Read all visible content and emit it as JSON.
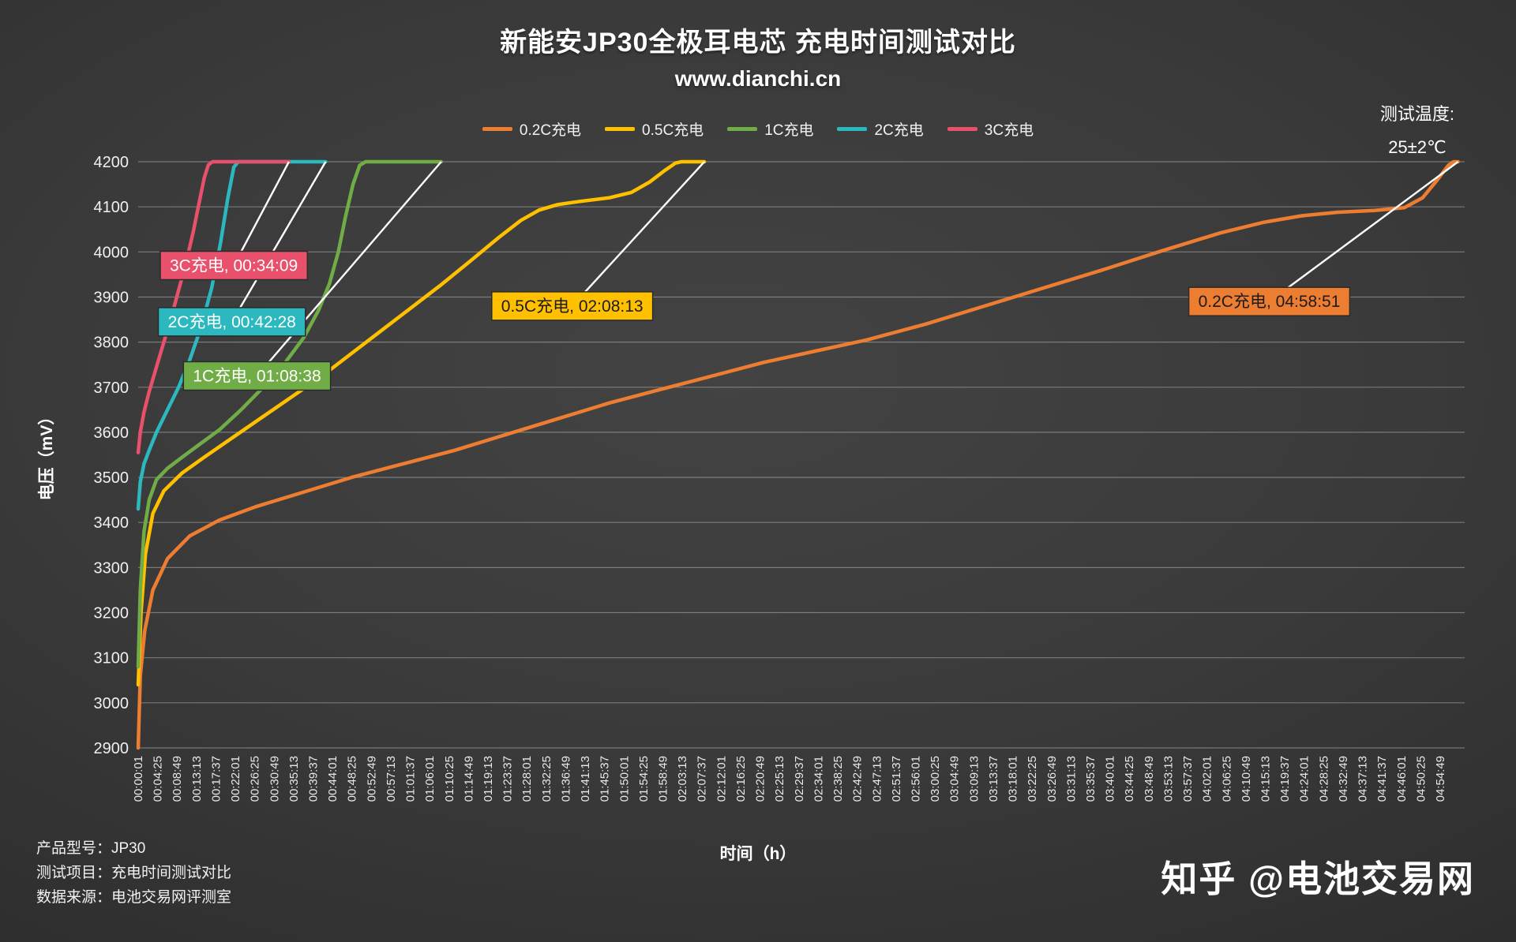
{
  "footer": {
    "info_lines": [
      "产品型号：JP30",
      "测试项目：充电时间测试对比",
      "数据来源：电池交易网评测室"
    ],
    "watermark": "知乎 @电池交易网"
  },
  "chart_data": {
    "type": "line",
    "title": "新能安JP30全极耳电芯 充电时间测试对比",
    "subtitle": "www.dianchi.cn",
    "xlabel": "时间（h）",
    "ylabel": "电压（mV）",
    "ylim": [
      2900,
      4200
    ],
    "y_ticks": [
      2900,
      3000,
      3100,
      3200,
      3300,
      3400,
      3500,
      3600,
      3700,
      3800,
      3900,
      4000,
      4100,
      4200
    ],
    "grid": "horizontal",
    "legend_position": "top-center",
    "annotations": {
      "temperature_line1": "测试温度:",
      "temperature_line2": "25±2℃"
    },
    "x_tick_interval_seconds": 264,
    "x_tick_labels": [
      "00:00:01",
      "00:04:25",
      "00:08:49",
      "00:13:13",
      "00:17:37",
      "00:22:01",
      "00:26:25",
      "00:30:49",
      "00:35:13",
      "00:39:37",
      "00:44:01",
      "00:48:25",
      "00:52:49",
      "00:57:13",
      "01:01:37",
      "01:06:01",
      "01:10:25",
      "01:14:49",
      "01:19:13",
      "01:23:37",
      "01:28:01",
      "01:32:25",
      "01:36:49",
      "01:41:13",
      "01:45:37",
      "01:50:01",
      "01:54:25",
      "01:58:49",
      "02:03:13",
      "02:07:37",
      "02:12:01",
      "02:16:25",
      "02:20:49",
      "02:25:13",
      "02:29:37",
      "02:34:01",
      "02:38:25",
      "02:42:49",
      "02:47:13",
      "02:51:37",
      "02:56:01",
      "03:00:25",
      "03:04:49",
      "03:09:13",
      "03:13:37",
      "03:18:01",
      "03:22:25",
      "03:26:49",
      "03:31:13",
      "03:35:37",
      "03:40:01",
      "03:44:25",
      "03:48:49",
      "03:53:13",
      "03:57:37",
      "04:02:01",
      "04:06:25",
      "04:10:49",
      "04:15:13",
      "04:19:37",
      "04:24:01",
      "04:28:25",
      "04:32:49",
      "04:37:13",
      "04:41:37",
      "04:46:01",
      "04:50:25",
      "04:54:49"
    ],
    "series": [
      {
        "name": "0.2C充电",
        "color": "#ED7D31",
        "charge_time": "04:58:51",
        "label": {
          "text": "0.2C充电, 04:58:51",
          "text_color": "#1b1b1b",
          "anchor_t": 15367,
          "anchor_mv": 3890
        },
        "points_t_mv": [
          [
            1,
            2900
          ],
          [
            30,
            3060
          ],
          [
            90,
            3160
          ],
          [
            200,
            3250
          ],
          [
            400,
            3320
          ],
          [
            700,
            3370
          ],
          [
            1100,
            3405
          ],
          [
            1600,
            3435
          ],
          [
            2200,
            3465
          ],
          [
            2900,
            3500
          ],
          [
            3600,
            3530
          ],
          [
            4300,
            3560
          ],
          [
            5000,
            3595
          ],
          [
            5700,
            3630
          ],
          [
            6400,
            3665
          ],
          [
            7100,
            3695
          ],
          [
            7800,
            3725
          ],
          [
            8500,
            3755
          ],
          [
            9200,
            3780
          ],
          [
            9900,
            3805
          ],
          [
            10700,
            3840
          ],
          [
            11500,
            3880
          ],
          [
            12300,
            3920
          ],
          [
            13100,
            3960
          ],
          [
            13900,
            4002
          ],
          [
            14700,
            4042
          ],
          [
            15300,
            4066
          ],
          [
            15800,
            4080
          ],
          [
            16300,
            4088
          ],
          [
            16800,
            4092
          ],
          [
            17200,
            4098
          ],
          [
            17450,
            4120
          ],
          [
            17650,
            4160
          ],
          [
            17800,
            4192
          ],
          [
            17870,
            4200
          ],
          [
            17931,
            4200
          ]
        ]
      },
      {
        "name": "0.5C充电",
        "color": "#FFC000",
        "charge_time": "02:08:13",
        "label": {
          "text": "0.5C充电, 02:08:13",
          "text_color": "#1b1b1b",
          "anchor_t": 5897,
          "anchor_mv": 3880
        },
        "points_t_mv": [
          [
            1,
            3040
          ],
          [
            40,
            3200
          ],
          [
            100,
            3330
          ],
          [
            200,
            3420
          ],
          [
            350,
            3470
          ],
          [
            600,
            3510
          ],
          [
            900,
            3545
          ],
          [
            1300,
            3590
          ],
          [
            1700,
            3635
          ],
          [
            2100,
            3680
          ],
          [
            2500,
            3725
          ],
          [
            2900,
            3775
          ],
          [
            3300,
            3825
          ],
          [
            3700,
            3875
          ],
          [
            4100,
            3925
          ],
          [
            4500,
            3978
          ],
          [
            4900,
            4032
          ],
          [
            5200,
            4070
          ],
          [
            5450,
            4093
          ],
          [
            5700,
            4105
          ],
          [
            6000,
            4112
          ],
          [
            6400,
            4120
          ],
          [
            6700,
            4132
          ],
          [
            6950,
            4155
          ],
          [
            7150,
            4180
          ],
          [
            7300,
            4197
          ],
          [
            7380,
            4200
          ],
          [
            7693,
            4200
          ]
        ]
      },
      {
        "name": "1C充电",
        "color": "#70AD47",
        "charge_time": "01:08:38",
        "label": {
          "text": "1C充电, 01:08:38",
          "text_color": "#ffffff",
          "anchor_t": 1615,
          "anchor_mv": 3725
        },
        "points_t_mv": [
          [
            1,
            3080
          ],
          [
            30,
            3250
          ],
          [
            80,
            3380
          ],
          [
            150,
            3450
          ],
          [
            250,
            3495
          ],
          [
            400,
            3520
          ],
          [
            600,
            3545
          ],
          [
            850,
            3575
          ],
          [
            1100,
            3605
          ],
          [
            1400,
            3650
          ],
          [
            1700,
            3700
          ],
          [
            2000,
            3755
          ],
          [
            2250,
            3810
          ],
          [
            2450,
            3870
          ],
          [
            2600,
            3930
          ],
          [
            2720,
            4000
          ],
          [
            2820,
            4080
          ],
          [
            2920,
            4150
          ],
          [
            3010,
            4192
          ],
          [
            3090,
            4200
          ],
          [
            4118,
            4200
          ]
        ]
      },
      {
        "name": "2C充电",
        "color": "#2BB8BE",
        "charge_time": "00:42:28",
        "label": {
          "text": "2C充电, 00:42:28",
          "text_color": "#ffffff",
          "anchor_t": 1274,
          "anchor_mv": 3845
        },
        "points_t_mv": [
          [
            1,
            3430
          ],
          [
            30,
            3490
          ],
          [
            80,
            3530
          ],
          [
            150,
            3560
          ],
          [
            250,
            3600
          ],
          [
            400,
            3650
          ],
          [
            550,
            3700
          ],
          [
            700,
            3760
          ],
          [
            850,
            3830
          ],
          [
            1000,
            3920
          ],
          [
            1120,
            4020
          ],
          [
            1220,
            4120
          ],
          [
            1300,
            4188
          ],
          [
            1360,
            4200
          ],
          [
            2548,
            4200
          ]
        ]
      },
      {
        "name": "3C充电",
        "color": "#E8506B",
        "charge_time": "00:34:09",
        "label": {
          "text": "3C充电, 00:34:09",
          "text_color": "#ffffff",
          "anchor_t": 1300,
          "anchor_mv": 3970
        },
        "points_t_mv": [
          [
            1,
            3555
          ],
          [
            30,
            3600
          ],
          [
            80,
            3645
          ],
          [
            150,
            3690
          ],
          [
            250,
            3745
          ],
          [
            350,
            3800
          ],
          [
            450,
            3855
          ],
          [
            550,
            3915
          ],
          [
            650,
            3975
          ],
          [
            750,
            4045
          ],
          [
            830,
            4110
          ],
          [
            900,
            4165
          ],
          [
            955,
            4193
          ],
          [
            1010,
            4200
          ],
          [
            2049,
            4200
          ]
        ]
      }
    ]
  }
}
